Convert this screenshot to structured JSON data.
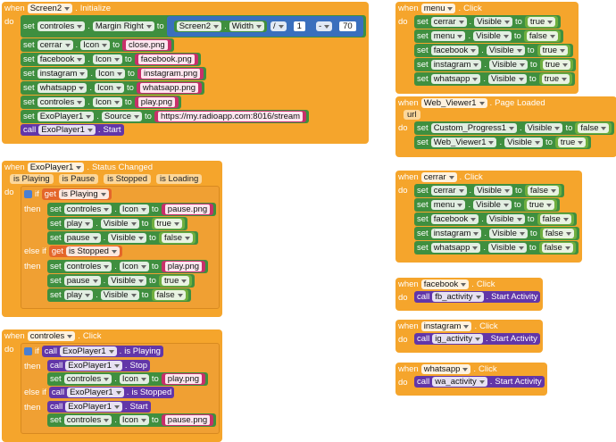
{
  "dot": ".",
  "events": [
    {
      "when": "when",
      "component": "Screen2",
      "event": "Initialize",
      "do": "do",
      "body": [
        {
          "set": "set",
          "component": "controles",
          "property": "Margin Right",
          "to": "to",
          "value": {
            "op": "-",
            "left": {
              "op": "/",
              "left": {
                "component": "Screen2",
                "property": "Width"
              },
              "right": {
                "number": 1
              }
            },
            "right": {
              "number": 70
            }
          }
        },
        {
          "set": "set",
          "component": "cerrar",
          "property": "Icon",
          "to": "to",
          "value": {
            "text": "close.png"
          }
        },
        {
          "set": "set",
          "component": "facebook",
          "property": "Icon",
          "to": "to",
          "value": {
            "text": "facebook.png"
          }
        },
        {
          "set": "set",
          "component": "instagram",
          "property": "Icon",
          "to": "to",
          "value": {
            "text": "instagram.png"
          }
        },
        {
          "set": "set",
          "component": "whatsapp",
          "property": "Icon",
          "to": "to",
          "value": {
            "text": "whatsapp.png"
          }
        },
        {
          "set": "set",
          "component": "controles",
          "property": "Icon",
          "to": "to",
          "value": {
            "text": "play.png"
          }
        },
        {
          "set": "set",
          "component": "ExoPlayer1",
          "property": "Source",
          "to": "to",
          "value": {
            "text": "https://my.radioapp.com:8016/stream"
          }
        },
        {
          "call": "call",
          "component": "ExoPlayer1",
          "method": "Start"
        }
      ]
    },
    {
      "when": "when",
      "component": "ExoPlayer1",
      "event": "Status Changed",
      "params": [
        "is Playing",
        "is Pause",
        "is Stopped",
        "is Loading"
      ],
      "do": "do",
      "body": [
        {
          "if": [
            {
              "label": "if",
              "cond": {
                "get": "get",
                "name": "is Playing"
              },
              "then": "then",
              "body": [
                {
                  "set": "set",
                  "component": "controles",
                  "property": "Icon",
                  "to": "to",
                  "value": {
                    "text": "pause.png"
                  }
                },
                {
                  "set": "set",
                  "component": "play",
                  "property": "Visible",
                  "to": "to",
                  "value": {
                    "bool": "true"
                  }
                },
                {
                  "set": "set",
                  "component": "pause",
                  "property": "Visible",
                  "to": "to",
                  "value": {
                    "bool": "false"
                  }
                }
              ]
            },
            {
              "label": "else if",
              "cond": {
                "get": "get",
                "name": "is Stopped"
              },
              "then": "then",
              "body": [
                {
                  "set": "set",
                  "component": "controles",
                  "property": "Icon",
                  "to": "to",
                  "value": {
                    "text": "play.png"
                  }
                },
                {
                  "set": "set",
                  "component": "pause",
                  "property": "Visible",
                  "to": "to",
                  "value": {
                    "bool": "true"
                  }
                },
                {
                  "set": "set",
                  "component": "play",
                  "property": "Visible",
                  "to": "to",
                  "value": {
                    "bool": "false"
                  }
                }
              ]
            }
          ]
        }
      ]
    },
    {
      "when": "when",
      "component": "controles",
      "event": "Click",
      "do": "do",
      "body": [
        {
          "if": [
            {
              "label": "if",
              "cond": {
                "call": "call",
                "component": "ExoPlayer1",
                "method": "is Playing"
              },
              "then": "then",
              "body": [
                {
                  "call": "call",
                  "component": "ExoPlayer1",
                  "method": "Stop"
                },
                {
                  "set": "set",
                  "component": "controles",
                  "property": "Icon",
                  "to": "to",
                  "value": {
                    "text": "play.png"
                  }
                }
              ]
            },
            {
              "label": "else if",
              "cond": {
                "call": "call",
                "component": "ExoPlayer1",
                "method": "is Stopped"
              },
              "then": "then",
              "body": [
                {
                  "call": "call",
                  "component": "ExoPlayer1",
                  "method": "Start"
                },
                {
                  "set": "set",
                  "component": "controles",
                  "property": "Icon",
                  "to": "to",
                  "value": {
                    "text": "pause.png"
                  }
                }
              ]
            }
          ]
        }
      ]
    },
    {
      "when": "when",
      "component": "menu",
      "event": "Click",
      "do": "do",
      "body": [
        {
          "set": "set",
          "component": "cerrar",
          "property": "Visible",
          "to": "to",
          "value": {
            "bool": "true"
          }
        },
        {
          "set": "set",
          "component": "menu",
          "property": "Visible",
          "to": "to",
          "value": {
            "bool": "false"
          }
        },
        {
          "set": "set",
          "component": "facebook",
          "property": "Visible",
          "to": "to",
          "value": {
            "bool": "true"
          }
        },
        {
          "set": "set",
          "component": "instagram",
          "property": "Visible",
          "to": "to",
          "value": {
            "bool": "true"
          }
        },
        {
          "set": "set",
          "component": "whatsapp",
          "property": "Visible",
          "to": "to",
          "value": {
            "bool": "true"
          }
        }
      ]
    },
    {
      "when": "when",
      "component": "Web_Viewer1",
      "event": "Page Loaded",
      "params": [
        "url"
      ],
      "do": "do",
      "body": [
        {
          "set": "set",
          "component": "Custom_Progress1",
          "property": "Visible",
          "to": "to",
          "value": {
            "bool": "false"
          }
        },
        {
          "set": "set",
          "component": "Web_Viewer1",
          "property": "Visible",
          "to": "to",
          "value": {
            "bool": "true"
          }
        }
      ]
    },
    {
      "when": "when",
      "component": "cerrar",
      "event": "Click",
      "do": "do",
      "body": [
        {
          "set": "set",
          "component": "cerrar",
          "property": "Visible",
          "to": "to",
          "value": {
            "bool": "false"
          }
        },
        {
          "set": "set",
          "component": "menu",
          "property": "Visible",
          "to": "to",
          "value": {
            "bool": "true"
          }
        },
        {
          "set": "set",
          "component": "facebook",
          "property": "Visible",
          "to": "to",
          "value": {
            "bool": "false"
          }
        },
        {
          "set": "set",
          "component": "instagram",
          "property": "Visible",
          "to": "to",
          "value": {
            "bool": "false"
          }
        },
        {
          "set": "set",
          "component": "whatsapp",
          "property": "Visible",
          "to": "to",
          "value": {
            "bool": "false"
          }
        }
      ]
    },
    {
      "when": "when",
      "component": "facebook",
      "event": "Click",
      "do": "do",
      "body": [
        {
          "call": "call",
          "component": "fb_activity",
          "method": "Start Activity"
        }
      ]
    },
    {
      "when": "when",
      "component": "instagram",
      "event": "Click",
      "do": "do",
      "body": [
        {
          "call": "call",
          "component": "ig_activity",
          "method": "Start Activity"
        }
      ]
    },
    {
      "when": "when",
      "component": "whatsapp",
      "event": "Click",
      "do": "do",
      "body": [
        {
          "call": "call",
          "component": "wa_activity",
          "method": "Start Activity"
        }
      ]
    }
  ]
}
